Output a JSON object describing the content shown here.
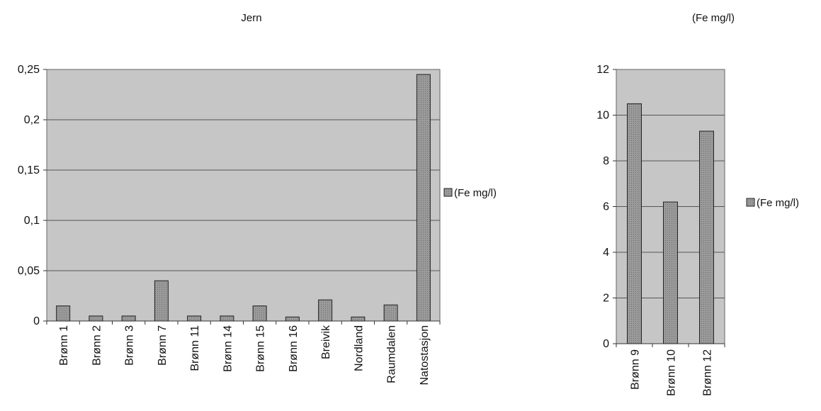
{
  "chart_data": [
    {
      "type": "bar",
      "title": "Jern",
      "categories": [
        "Brønn 1",
        "Brønn 2",
        "Brønn 3",
        "Brønn 7",
        "Brønn 11",
        "Brønn 14",
        "Brønn 15",
        "Brønn 16",
        "Breivik",
        "Nordland",
        "Raumdalen",
        "Natostasjon"
      ],
      "series": [
        {
          "name": "(Fe mg/l)",
          "values": [
            0.015,
            0.005,
            0.005,
            0.04,
            0.005,
            0.005,
            0.015,
            0.004,
            0.021,
            0.004,
            0.016,
            0.245
          ]
        }
      ],
      "yticks": [
        "0",
        "0,05",
        "0,1",
        "0,15",
        "0,2",
        "0,25"
      ],
      "ylim": [
        0,
        0.25
      ],
      "grid": true,
      "legend": "right"
    },
    {
      "type": "bar",
      "title": "(Fe mg/l)",
      "categories": [
        "Brønn 9",
        "Brønn 10",
        "Brønn 12"
      ],
      "series": [
        {
          "name": "(Fe mg/l)",
          "values": [
            10.5,
            6.2,
            9.3
          ]
        }
      ],
      "yticks": [
        "0",
        "2",
        "4",
        "6",
        "8",
        "10",
        "12"
      ],
      "ylim": [
        0,
        12
      ],
      "grid": true,
      "legend": "right"
    }
  ],
  "colors": {
    "plot_bg": "#c6c6c6",
    "bar_fill": "#8f8f8f",
    "grid": "#555555"
  }
}
